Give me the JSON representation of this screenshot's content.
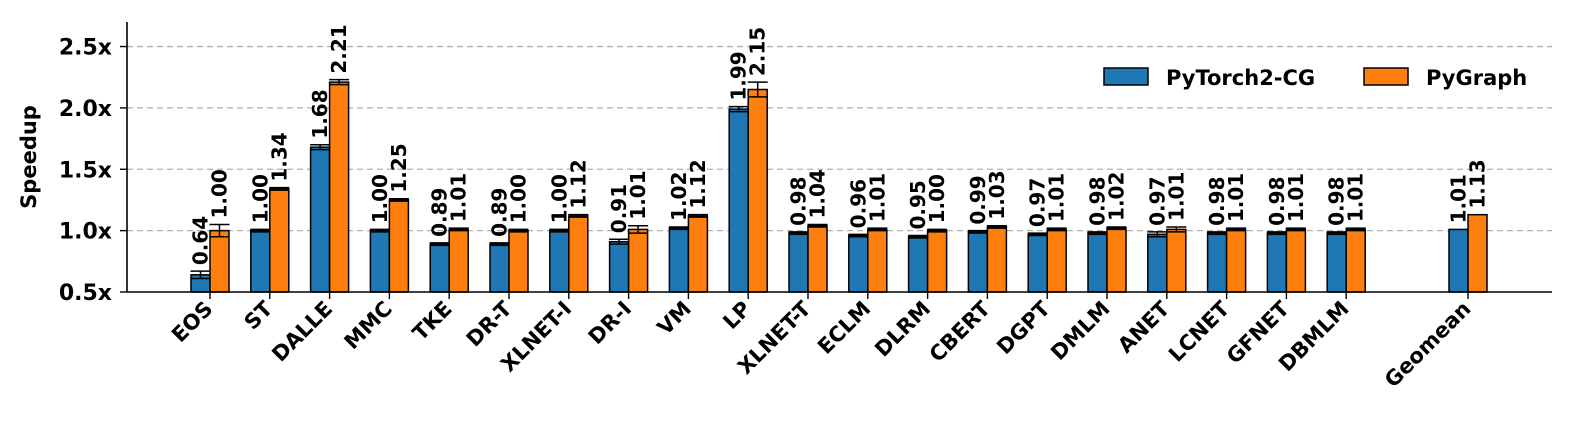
{
  "chart_data": {
    "type": "bar",
    "ylabel": "Speedup",
    "ylim": [
      0.5,
      2.7
    ],
    "yticks": [
      0.5,
      1.0,
      1.5,
      2.0,
      2.5
    ],
    "ytick_labels": [
      "0.5x",
      "1.0x",
      "1.5x",
      "2.0x",
      "2.5x"
    ],
    "grid": "horizontal-dashed",
    "legend_position": "top-right",
    "categories": [
      "EOS",
      "ST",
      "DALLE",
      "MMC",
      "TKE",
      "DR-T",
      "XLNET-I",
      "DR-I",
      "VM",
      "LP",
      "XLNET-T",
      "ECLM",
      "DLRM",
      "CBERT",
      "DGPT",
      "DMLM",
      "ANET",
      "LCNET",
      "GFNET",
      "DBMLM",
      "Geomean"
    ],
    "series": [
      {
        "name": "PyTorch2-CG",
        "color": "#1f77b4",
        "values": [
          0.64,
          1.0,
          1.68,
          1.0,
          0.89,
          0.89,
          1.0,
          0.91,
          1.02,
          1.99,
          0.98,
          0.96,
          0.95,
          0.99,
          0.97,
          0.98,
          0.97,
          0.98,
          0.98,
          0.98,
          1.01
        ],
        "labels": [
          "0.64",
          "1.00",
          "1.68",
          "1.00",
          "0.89",
          "0.89",
          "1.00",
          "0.91",
          "1.02",
          "1.99",
          "0.98",
          "0.96",
          "0.95",
          "0.99",
          "0.97",
          "0.98",
          "0.97",
          "0.98",
          "0.98",
          "0.98",
          "1.01"
        ],
        "errors": [
          0.03,
          0.01,
          0.02,
          0.01,
          0.01,
          0.01,
          0.01,
          0.02,
          0.01,
          0.02,
          0.01,
          0.01,
          0.01,
          0.01,
          0.01,
          0.01,
          0.02,
          0.01,
          0.01,
          0.01,
          0.0
        ]
      },
      {
        "name": "PyGraph",
        "color": "#ff7f0e",
        "values": [
          1.0,
          1.34,
          2.21,
          1.25,
          1.01,
          1.0,
          1.12,
          1.01,
          1.12,
          2.15,
          1.04,
          1.01,
          1.0,
          1.03,
          1.01,
          1.02,
          1.01,
          1.01,
          1.01,
          1.01,
          1.13
        ],
        "labels": [
          "1.00",
          "1.34",
          "2.21",
          "1.25",
          "1.01",
          "1.00",
          "1.12",
          "1.01",
          "1.12",
          "2.15",
          "1.04",
          "1.01",
          "1.00",
          "1.03",
          "1.01",
          "1.02",
          "1.01",
          "1.01",
          "1.01",
          "1.01",
          "1.13"
        ],
        "errors": [
          0.05,
          0.01,
          0.02,
          0.01,
          0.01,
          0.01,
          0.01,
          0.03,
          0.01,
          0.06,
          0.01,
          0.01,
          0.01,
          0.01,
          0.01,
          0.01,
          0.02,
          0.01,
          0.01,
          0.01,
          0.0
        ]
      }
    ]
  }
}
